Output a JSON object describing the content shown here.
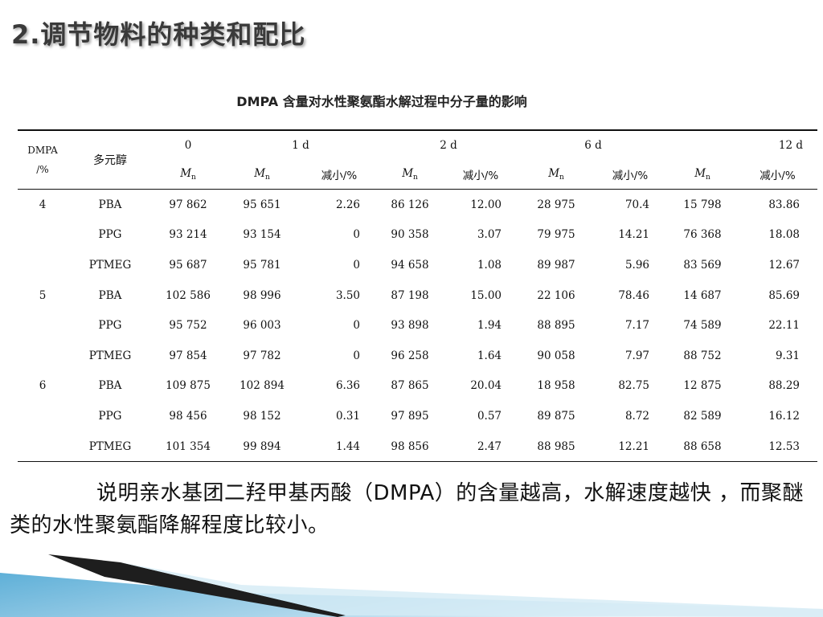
{
  "slide": {
    "title": "2.调节物料的种类和配比",
    "table_caption": "DMPA 含量对水性聚氨酯水解过程中分子量的影响",
    "body_text": "说明亲水基团二羟甲基丙酸（DMPA）的含量越高，水解速度越快 ，而聚醚类的水性聚氨酯降解程度比较小。"
  },
  "table": {
    "header": {
      "dmpa_line1": "DMPA",
      "dmpa_line2": "/%",
      "polyol": "多元醇",
      "groups": [
        "0",
        "1 d",
        "2 d",
        "6 d",
        "12 d"
      ],
      "mn_main": "M",
      "mn_sub": "n",
      "reduction": "减小/%"
    },
    "rows": [
      {
        "dmpa": "4",
        "polyol": "PBA",
        "cells": [
          "97 862",
          "95 651",
          "2.26",
          "86 126",
          "12.00",
          "28 975",
          "70.4",
          "15 798",
          "83.86"
        ]
      },
      {
        "dmpa": "",
        "polyol": "PPG",
        "cells": [
          "93 214",
          "93 154",
          "0",
          "90 358",
          "3.07",
          "79 975",
          "14.21",
          "76 368",
          "18.08"
        ]
      },
      {
        "dmpa": "",
        "polyol": "PTMEG",
        "cells": [
          "95 687",
          "95 781",
          "0",
          "94 658",
          "1.08",
          "89 987",
          "5.96",
          "83 569",
          "12.67"
        ]
      },
      {
        "dmpa": "5",
        "polyol": "PBA",
        "cells": [
          "102 586",
          "98 996",
          "3.50",
          "87 198",
          "15.00",
          "22 106",
          "78.46",
          "14 687",
          "85.69"
        ]
      },
      {
        "dmpa": "",
        "polyol": "PPG",
        "cells": [
          "95 752",
          "96 003",
          "0",
          "93 898",
          "1.94",
          "88 895",
          "7.17",
          "74 589",
          "22.11"
        ]
      },
      {
        "dmpa": "",
        "polyol": "PTMEG",
        "cells": [
          "97 854",
          "97 782",
          "0",
          "96 258",
          "1.64",
          "90 058",
          "7.97",
          "88 752",
          "9.31"
        ]
      },
      {
        "dmpa": "6",
        "polyol": "PBA",
        "cells": [
          "109 875",
          "102 894",
          "6.36",
          "87 865",
          "20.04",
          "18 958",
          "82.75",
          "12 875",
          "88.29"
        ]
      },
      {
        "dmpa": "",
        "polyol": "PPG",
        "cells": [
          "98 456",
          "98 152",
          "0.31",
          "97 895",
          "0.57",
          "89 875",
          "8.72",
          "82 589",
          "16.12"
        ]
      },
      {
        "dmpa": "",
        "polyol": "PTMEG",
        "cells": [
          "101 354",
          "99 894",
          "1.44",
          "98 856",
          "2.47",
          "88 985",
          "12.21",
          "88 658",
          "12.53"
        ]
      }
    ]
  },
  "colors": {
    "corner_blue_light": "#cfe6f2",
    "corner_blue_mid": "#6fb6d9",
    "corner_dark": "#1a1a1a"
  }
}
